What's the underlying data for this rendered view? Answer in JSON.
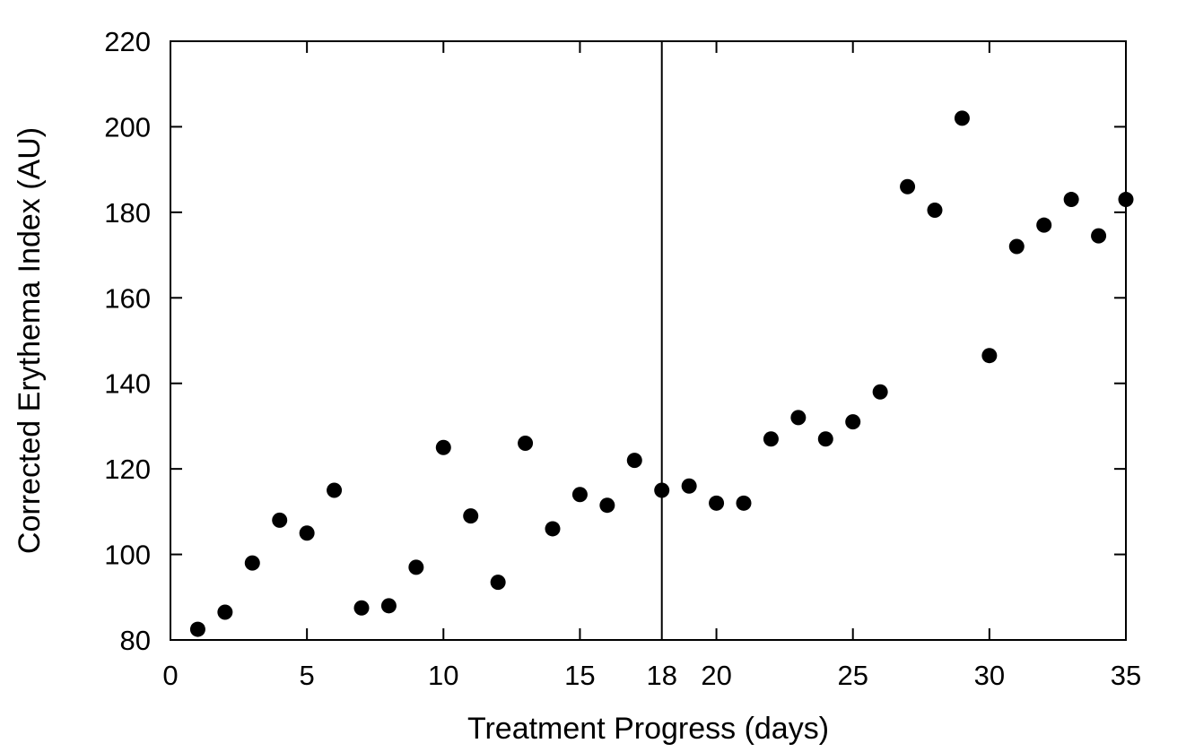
{
  "chart_data": {
    "type": "scatter",
    "title": "",
    "xlabel": "Treatment Progress (days)",
    "ylabel": "Corrected Erythema Index (AU)",
    "xlim": [
      0,
      35
    ],
    "ylim": [
      80,
      220
    ],
    "xticks": [
      0,
      5,
      10,
      15,
      18,
      20,
      25,
      30,
      35
    ],
    "yticks": [
      80,
      100,
      120,
      140,
      160,
      180,
      200,
      220
    ],
    "grid": false,
    "legend": "none",
    "marker_color": "#000000",
    "reference_line_x": 18,
    "series": [
      {
        "x": [
          1,
          2,
          3,
          4,
          5,
          6,
          7,
          8,
          9,
          10,
          11,
          12,
          13,
          14,
          15,
          16,
          17,
          18,
          19,
          20,
          21,
          22,
          23,
          24,
          25,
          26,
          27,
          28,
          29,
          30,
          31,
          32,
          33,
          34,
          35
        ],
        "y": [
          82.5,
          86.5,
          98,
          108,
          105,
          115,
          87.5,
          88,
          97,
          125,
          109,
          93.5,
          126,
          106,
          114,
          111.5,
          122,
          115,
          116,
          112,
          112,
          127,
          132,
          127,
          131,
          138,
          186,
          180.5,
          202,
          146.5,
          172,
          177,
          183,
          174.5,
          183
        ]
      }
    ]
  }
}
